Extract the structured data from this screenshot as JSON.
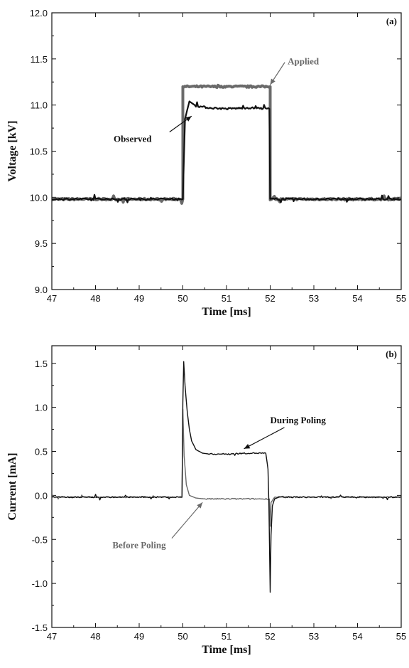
{
  "chart_data": [
    {
      "type": "line",
      "panel_label": "(a)",
      "xlabel": "Time [ms]",
      "ylabel": "Voltage [kV]",
      "xlim": [
        47,
        55
      ],
      "ylim": [
        9.0,
        12.0
      ],
      "x_ticks": [
        "47",
        "48",
        "49",
        "50",
        "51",
        "52",
        "53",
        "54",
        "55"
      ],
      "y_ticks": [
        "9.0",
        "9.5",
        "10.0",
        "10.5",
        "11.0",
        "11.5",
        "12.0"
      ],
      "grid": false,
      "series": [
        {
          "name": "Applied",
          "color": "#6a6a6a",
          "x": [
            47,
            50.0,
            50.0,
            52.0,
            52.0,
            55
          ],
          "y": [
            9.98,
            9.98,
            11.2,
            11.2,
            9.98,
            9.98
          ]
        },
        {
          "name": "Observed",
          "color": "#111111",
          "x": [
            47,
            50.0,
            50.05,
            50.15,
            50.3,
            50.6,
            51.0,
            51.5,
            51.98,
            52.0,
            55
          ],
          "y": [
            9.98,
            9.98,
            10.85,
            11.04,
            10.99,
            10.97,
            10.96,
            10.97,
            10.96,
            9.98,
            9.98
          ]
        }
      ],
      "annotations": [
        {
          "text": "Applied",
          "x": 52.4,
          "y": 11.44,
          "target_x": 52.0,
          "target_y": 11.22,
          "color": "#6a6a6a"
        },
        {
          "text": "Observed",
          "x": 48.85,
          "y": 10.6,
          "target_x": 50.2,
          "target_y": 10.88,
          "color": "#111111"
        }
      ]
    },
    {
      "type": "line",
      "panel_label": "(b)",
      "xlabel": "Time [ms]",
      "ylabel": "Current [mA]",
      "xlim": [
        47,
        55
      ],
      "ylim": [
        -1.5,
        1.7
      ],
      "x_ticks": [
        "47",
        "48",
        "49",
        "50",
        "51",
        "52",
        "53",
        "54",
        "55"
      ],
      "y_ticks": [
        "-1.5",
        "-1.0",
        "-0.5",
        "0.0",
        "0.5",
        "1.0",
        "1.5"
      ],
      "grid": false,
      "series": [
        {
          "name": "Before Poling",
          "color": "#6a6a6a",
          "x": [
            47,
            49.98,
            50.0,
            50.03,
            50.08,
            50.15,
            50.3,
            50.5,
            51.0,
            51.98,
            52.0,
            52.02,
            52.1,
            55
          ],
          "y": [
            -0.02,
            -0.02,
            0.98,
            0.45,
            0.12,
            0.0,
            -0.03,
            -0.04,
            -0.04,
            -0.04,
            -0.35,
            -0.08,
            -0.02,
            -0.02
          ]
        },
        {
          "name": "During Poling",
          "color": "#111111",
          "x": [
            47,
            49.98,
            50.0,
            50.02,
            50.05,
            50.1,
            50.15,
            50.2,
            50.3,
            50.45,
            50.6,
            51.0,
            51.5,
            51.9,
            51.95,
            51.97,
            52.0,
            52.02,
            52.05,
            52.1,
            52.2,
            55
          ],
          "y": [
            -0.02,
            -0.02,
            1.05,
            1.52,
            1.25,
            0.95,
            0.75,
            0.62,
            0.52,
            0.48,
            0.47,
            0.47,
            0.48,
            0.48,
            0.3,
            -0.1,
            -1.1,
            -0.45,
            -0.12,
            -0.04,
            -0.02,
            -0.02
          ]
        }
      ],
      "annotations": [
        {
          "text": "During Poling",
          "x": 52.0,
          "y": 0.82,
          "target_x": 51.4,
          "target_y": 0.53,
          "color": "#111111"
        },
        {
          "text": "Before Poling",
          "x": 49.0,
          "y": -0.6,
          "target_x": 50.45,
          "target_y": -0.08,
          "color": "#6a6a6a"
        }
      ]
    }
  ]
}
